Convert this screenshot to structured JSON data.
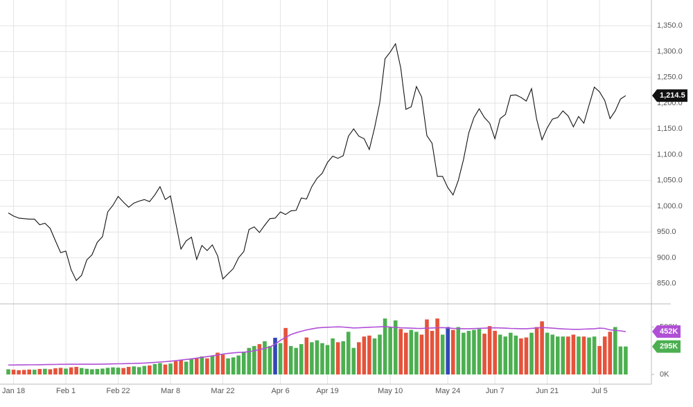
{
  "chart_data": {
    "type": "stock",
    "categories": [
      null,
      "Jan 18",
      null,
      null,
      null,
      null,
      null,
      null,
      null,
      null,
      null,
      "Feb 1",
      null,
      null,
      null,
      null,
      null,
      null,
      null,
      null,
      null,
      "Feb 22",
      null,
      null,
      null,
      null,
      null,
      null,
      null,
      null,
      null,
      "Mar 8",
      null,
      null,
      null,
      null,
      null,
      null,
      null,
      null,
      null,
      "Mar 22",
      null,
      null,
      null,
      null,
      null,
      null,
      null,
      null,
      null,
      null,
      "Apr 6",
      null,
      null,
      null,
      null,
      null,
      null,
      null,
      null,
      "Apr 19",
      null,
      null,
      null,
      null,
      null,
      null,
      null,
      null,
      null,
      null,
      null,
      "May 10",
      null,
      null,
      null,
      null,
      null,
      null,
      null,
      null,
      null,
      null,
      "May 24",
      null,
      null,
      null,
      null,
      null,
      null,
      null,
      null,
      "Jun 7",
      null,
      null,
      null,
      null,
      null,
      null,
      null,
      null,
      null,
      "Jun 21",
      null,
      null,
      null,
      null,
      null,
      null,
      null,
      null,
      null,
      "Jul 5",
      null,
      null,
      null,
      null,
      null
    ],
    "price": {
      "color": "#111111",
      "values": [
        987,
        981,
        977,
        976,
        975,
        975,
        964,
        967,
        957,
        933,
        910,
        913,
        877,
        856,
        866,
        896,
        906,
        930,
        941,
        989,
        1002,
        1019,
        1008,
        998,
        1006,
        1010,
        1013,
        1009,
        1022,
        1038,
        1013,
        1020,
        968,
        917,
        933,
        940,
        897,
        924,
        914,
        925,
        904,
        859,
        869,
        879,
        900,
        912,
        955,
        960,
        949,
        963,
        976,
        977,
        989,
        984,
        991,
        992,
        1016,
        1014,
        1038,
        1054,
        1064,
        1085,
        1097,
        1093,
        1098,
        1136,
        1150,
        1136,
        1131,
        1110,
        1152,
        1201,
        1286,
        1299,
        1315,
        1268,
        1188,
        1193,
        1232,
        1212,
        1137,
        1122,
        1058,
        1058,
        1036,
        1022,
        1050,
        1091,
        1142,
        1172,
        1189,
        1172,
        1161,
        1131,
        1170,
        1178,
        1215,
        1216,
        1211,
        1204,
        1228,
        1168,
        1129,
        1152,
        1169,
        1172,
        1185,
        1175,
        1154,
        1174,
        1161,
        1196,
        1231,
        1222,
        1205,
        1170,
        1185,
        1208,
        1214.5
      ],
      "last_label": "1,214.5",
      "badge_color": "#111111"
    },
    "ylim": [
      812,
      1400
    ],
    "yticks": [
      {
        "value": 850,
        "label": "850.0"
      },
      {
        "value": 900,
        "label": "900.0"
      },
      {
        "value": 950,
        "label": "950.0"
      },
      {
        "value": 1000,
        "label": "1,000.0"
      },
      {
        "value": 1050,
        "label": "1,050.0"
      },
      {
        "value": 1100,
        "label": "1,100.0"
      },
      {
        "value": 1150,
        "label": "1,150.0"
      },
      {
        "value": 1200,
        "label": "1,200.0"
      },
      {
        "value": 1250,
        "label": "1,250.0"
      },
      {
        "value": 1300,
        "label": "1,300.0"
      },
      {
        "value": 1350,
        "label": "1,350.0"
      }
    ],
    "volume": {
      "values": [
        55,
        50,
        45,
        48,
        52,
        50,
        58,
        60,
        55,
        65,
        70,
        62,
        75,
        80,
        68,
        60,
        55,
        58,
        62,
        70,
        75,
        72,
        68,
        80,
        85,
        78,
        90,
        95,
        110,
        120,
        105,
        115,
        140,
        150,
        135,
        160,
        175,
        190,
        170,
        200,
        230,
        210,
        170,
        180,
        200,
        240,
        280,
        300,
        320,
        350,
        300,
        387,
        330,
        490,
        300,
        280,
        320,
        390,
        340,
        360,
        330,
        310,
        380,
        340,
        350,
        450,
        280,
        340,
        400,
        410,
        380,
        420,
        590,
        500,
        570,
        480,
        440,
        470,
        450,
        420,
        580,
        460,
        590,
        420,
        500,
        470,
        500,
        440,
        460,
        470,
        480,
        430,
        510,
        460,
        420,
        400,
        440,
        410,
        380,
        390,
        440,
        500,
        560,
        440,
        420,
        400,
        400,
        400,
        420,
        400,
        400,
        390,
        400,
        300,
        400,
        450,
        500,
        295,
        295
      ],
      "colors": [
        "#4caf50",
        "#e5533b",
        "#e5533b",
        "#e5533b",
        "#e5533b",
        "#4caf50",
        "#e5533b",
        "#4caf50",
        "#e5533b",
        "#e5533b",
        "#e5533b",
        "#4caf50",
        "#e5533b",
        "#e5533b",
        "#4caf50",
        "#4caf50",
        "#4caf50",
        "#4caf50",
        "#4caf50",
        "#4caf50",
        "#4caf50",
        "#4caf50",
        "#e5533b",
        "#e5533b",
        "#4caf50",
        "#4caf50",
        "#4caf50",
        "#e5533b",
        "#4caf50",
        "#4caf50",
        "#e5533b",
        "#4caf50",
        "#e5533b",
        "#e5533b",
        "#4caf50",
        "#4caf50",
        "#e5533b",
        "#4caf50",
        "#e5533b",
        "#4caf50",
        "#e5533b",
        "#e5533b",
        "#4caf50",
        "#4caf50",
        "#4caf50",
        "#4caf50",
        "#4caf50",
        "#4caf50",
        "#e5533b",
        "#4caf50",
        "#4caf50",
        "#3346b8",
        "#4caf50",
        "#e5533b",
        "#4caf50",
        "#4caf50",
        "#4caf50",
        "#e5533b",
        "#4caf50",
        "#4caf50",
        "#4caf50",
        "#4caf50",
        "#4caf50",
        "#e5533b",
        "#4caf50",
        "#4caf50",
        "#4caf50",
        "#e5533b",
        "#e5533b",
        "#e5533b",
        "#4caf50",
        "#4caf50",
        "#4caf50",
        "#4caf50",
        "#4caf50",
        "#e5533b",
        "#e5533b",
        "#4caf50",
        "#4caf50",
        "#e5533b",
        "#e5533b",
        "#e5533b",
        "#e5533b",
        "#4caf50",
        "#3346b8",
        "#e5533b",
        "#4caf50",
        "#4caf50",
        "#4caf50",
        "#4caf50",
        "#4caf50",
        "#e5533b",
        "#e5533b",
        "#e5533b",
        "#4caf50",
        "#4caf50",
        "#4caf50",
        "#4caf50",
        "#e5533b",
        "#e5533b",
        "#4caf50",
        "#e5533b",
        "#e5533b",
        "#4caf50",
        "#4caf50",
        "#4caf50",
        "#4caf50",
        "#e5533b",
        "#e5533b",
        "#4caf50",
        "#e5533b",
        "#4caf50",
        "#4caf50",
        "#e5533b",
        "#e5533b",
        "#e5533b",
        "#4caf50",
        "#4caf50",
        "#4caf50"
      ],
      "last_label": "295K",
      "badge_color": "#4caf50"
    },
    "volume_ma": {
      "color": "#b04fd6",
      "values": [
        100,
        100,
        101,
        101,
        102,
        102,
        103,
        104,
        105,
        106,
        107,
        107,
        108,
        108,
        108,
        108,
        108,
        108,
        109,
        110,
        112,
        113,
        114,
        115,
        116,
        118,
        120,
        123,
        127,
        131,
        135,
        140,
        146,
        152,
        158,
        165,
        172,
        180,
        188,
        196,
        205,
        215,
        222,
        228,
        232,
        235,
        240,
        250,
        262,
        275,
        290,
        320,
        360,
        390,
        420,
        440,
        455,
        470,
        480,
        490,
        495,
        498,
        500,
        502,
        500,
        495,
        490,
        492,
        495,
        498,
        500,
        502,
        505,
        500,
        496,
        492,
        490,
        488,
        486,
        485,
        488,
        490,
        492,
        494,
        490,
        486,
        484,
        482,
        482,
        484,
        486,
        488,
        490,
        492,
        490,
        488,
        485,
        484,
        482,
        482,
        486,
        490,
        494,
        492,
        488,
        484,
        480,
        478,
        476,
        476,
        478,
        480,
        482,
        488,
        485,
        470,
        465,
        460,
        452
      ],
      "last_label": "452K"
    },
    "vlim": [
      0,
      737
    ],
    "vticks": [
      {
        "value": 0,
        "label": "0K"
      },
      {
        "value": 500,
        "label": "500K"
      }
    ],
    "grid": true
  }
}
